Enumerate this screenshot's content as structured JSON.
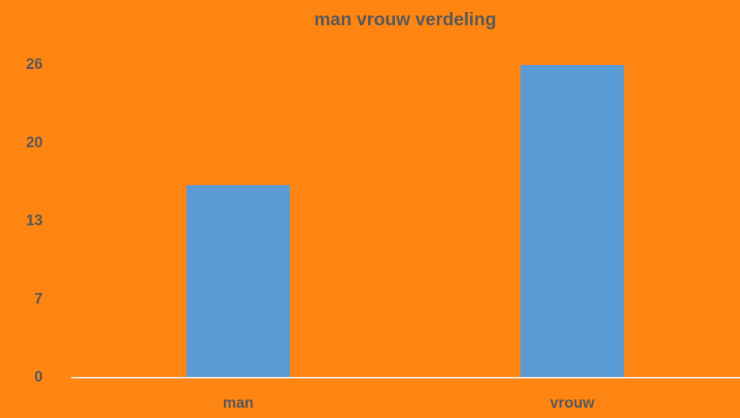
{
  "chart_data": {
    "type": "bar",
    "title": "man vrouw verdeling",
    "categories": [
      "man",
      "vrouw"
    ],
    "values": [
      16,
      26
    ],
    "color": "#5b9bd5",
    "ylim": [
      0,
      26
    ],
    "yticks": [
      0,
      {
        "value": 6.5,
        "label": "7"
      },
      13,
      {
        "value": 19.5,
        "label": "20"
      },
      26
    ],
    "grid": false
  }
}
